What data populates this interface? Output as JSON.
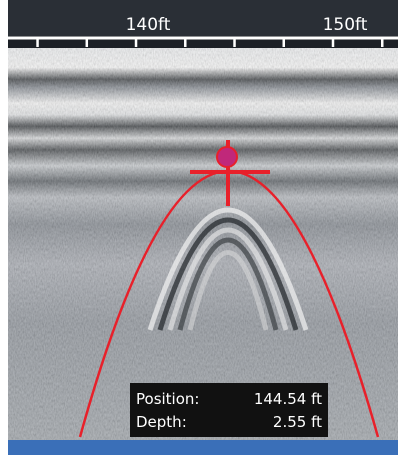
{
  "ruler": {
    "range": [
      133.5,
      153.3
    ],
    "ticks": [
      135,
      137.5,
      140,
      142.5,
      145,
      147.5,
      150,
      152.5
    ],
    "labels": [
      {
        "value": 140,
        "label": "140ft"
      },
      {
        "value": 150,
        "label": "150ft"
      }
    ]
  },
  "readout": {
    "position_label": "Position:",
    "position_value": "144.54 ft",
    "depth_label": "Depth:",
    "depth_value": "2.55 ft"
  }
}
